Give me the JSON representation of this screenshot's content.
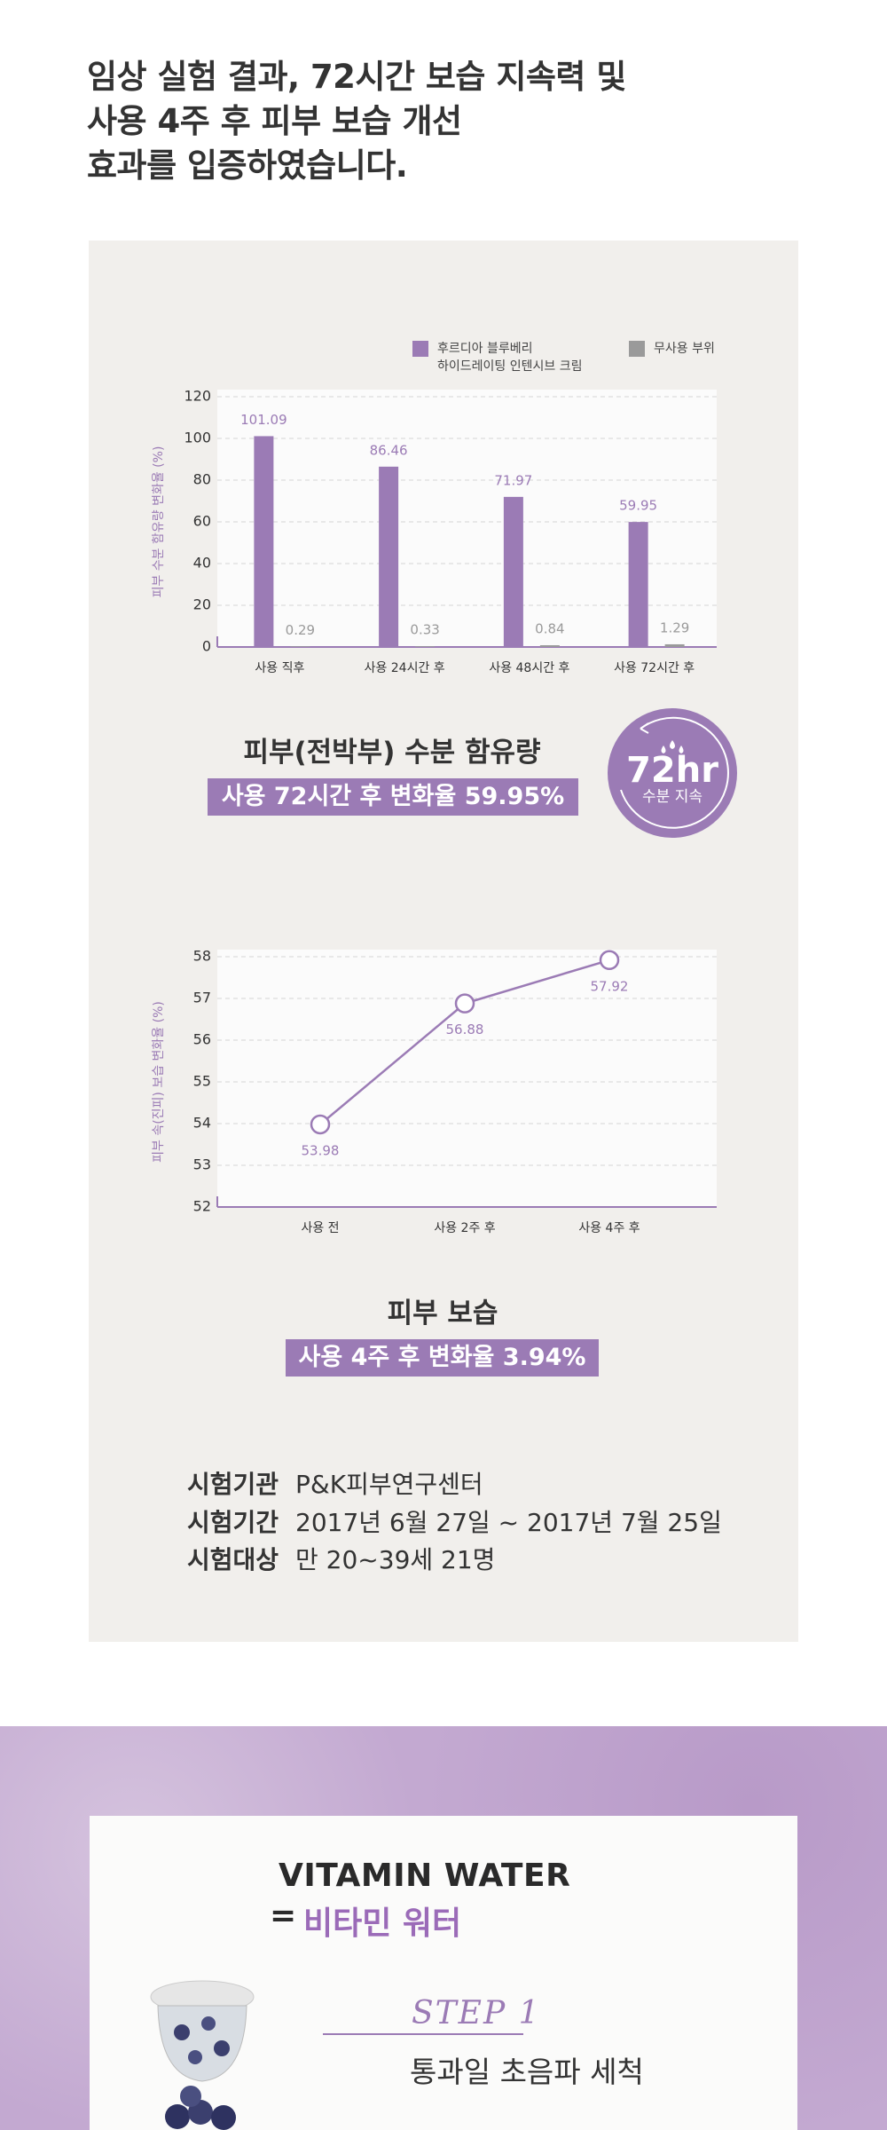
{
  "heading": {
    "lines": [
      "임상 실험 결과, 72시간 보습 지속력 및",
      "사용 4주 후 피부 보습 개선",
      "효과를 입증하였습니다."
    ]
  },
  "chart_data": [
    {
      "type": "bar",
      "title": "피부(전박부) 수분 함유량",
      "subtitle": "사용 72시간 후 변화율 59.95%",
      "badge": {
        "value": "72hr",
        "caption": "수분 지속"
      },
      "y_label": "피부 수분 함유량 변화율 (%)",
      "categories": [
        "사용 직후",
        "사용 24시간 후",
        "사용 48시간 후",
        "사용 72시간 후"
      ],
      "series": [
        {
          "name": "후르디아 블루베리\n하이드레이팅 인텐시브 크림",
          "color": "#9b7bb5",
          "values": [
            101.09,
            86.46,
            71.97,
            59.95
          ]
        },
        {
          "name": "무사용 부위",
          "color": "#9a9a9a",
          "values": [
            0.29,
            0.33,
            0.84,
            1.29
          ]
        }
      ],
      "ylim": [
        0,
        120
      ],
      "yticks": [
        0,
        20,
        40,
        60,
        80,
        100,
        120
      ],
      "grid": true
    },
    {
      "type": "line",
      "title": "피부 보습",
      "subtitle": "사용 4주 후 변화율 3.94%",
      "y_label": "피부 속(진피) 보습 변화율 (%)",
      "categories": [
        "사용 전",
        "사용 2주 후",
        "사용 4주 후"
      ],
      "values": [
        53.98,
        56.88,
        57.92
      ],
      "color": "#9b7bb5",
      "ylim": [
        52,
        58
      ],
      "yticks": [
        52,
        53,
        54,
        55,
        56,
        57,
        58
      ],
      "grid": true
    }
  ],
  "study": {
    "rows": [
      [
        "시험기관",
        "P&K피부연구센터"
      ],
      [
        "시험기간",
        "2017년 6월 27일 ~ 2017년 7월 25일"
      ],
      [
        "시험대상",
        "만 20~39세 21명"
      ]
    ]
  },
  "vitamin": {
    "title": "VITAMIN WATER",
    "equals": "=",
    "subtitle": "비타민 워터",
    "step": "STEP 1",
    "step_title": "통과일 초음파 세척"
  }
}
